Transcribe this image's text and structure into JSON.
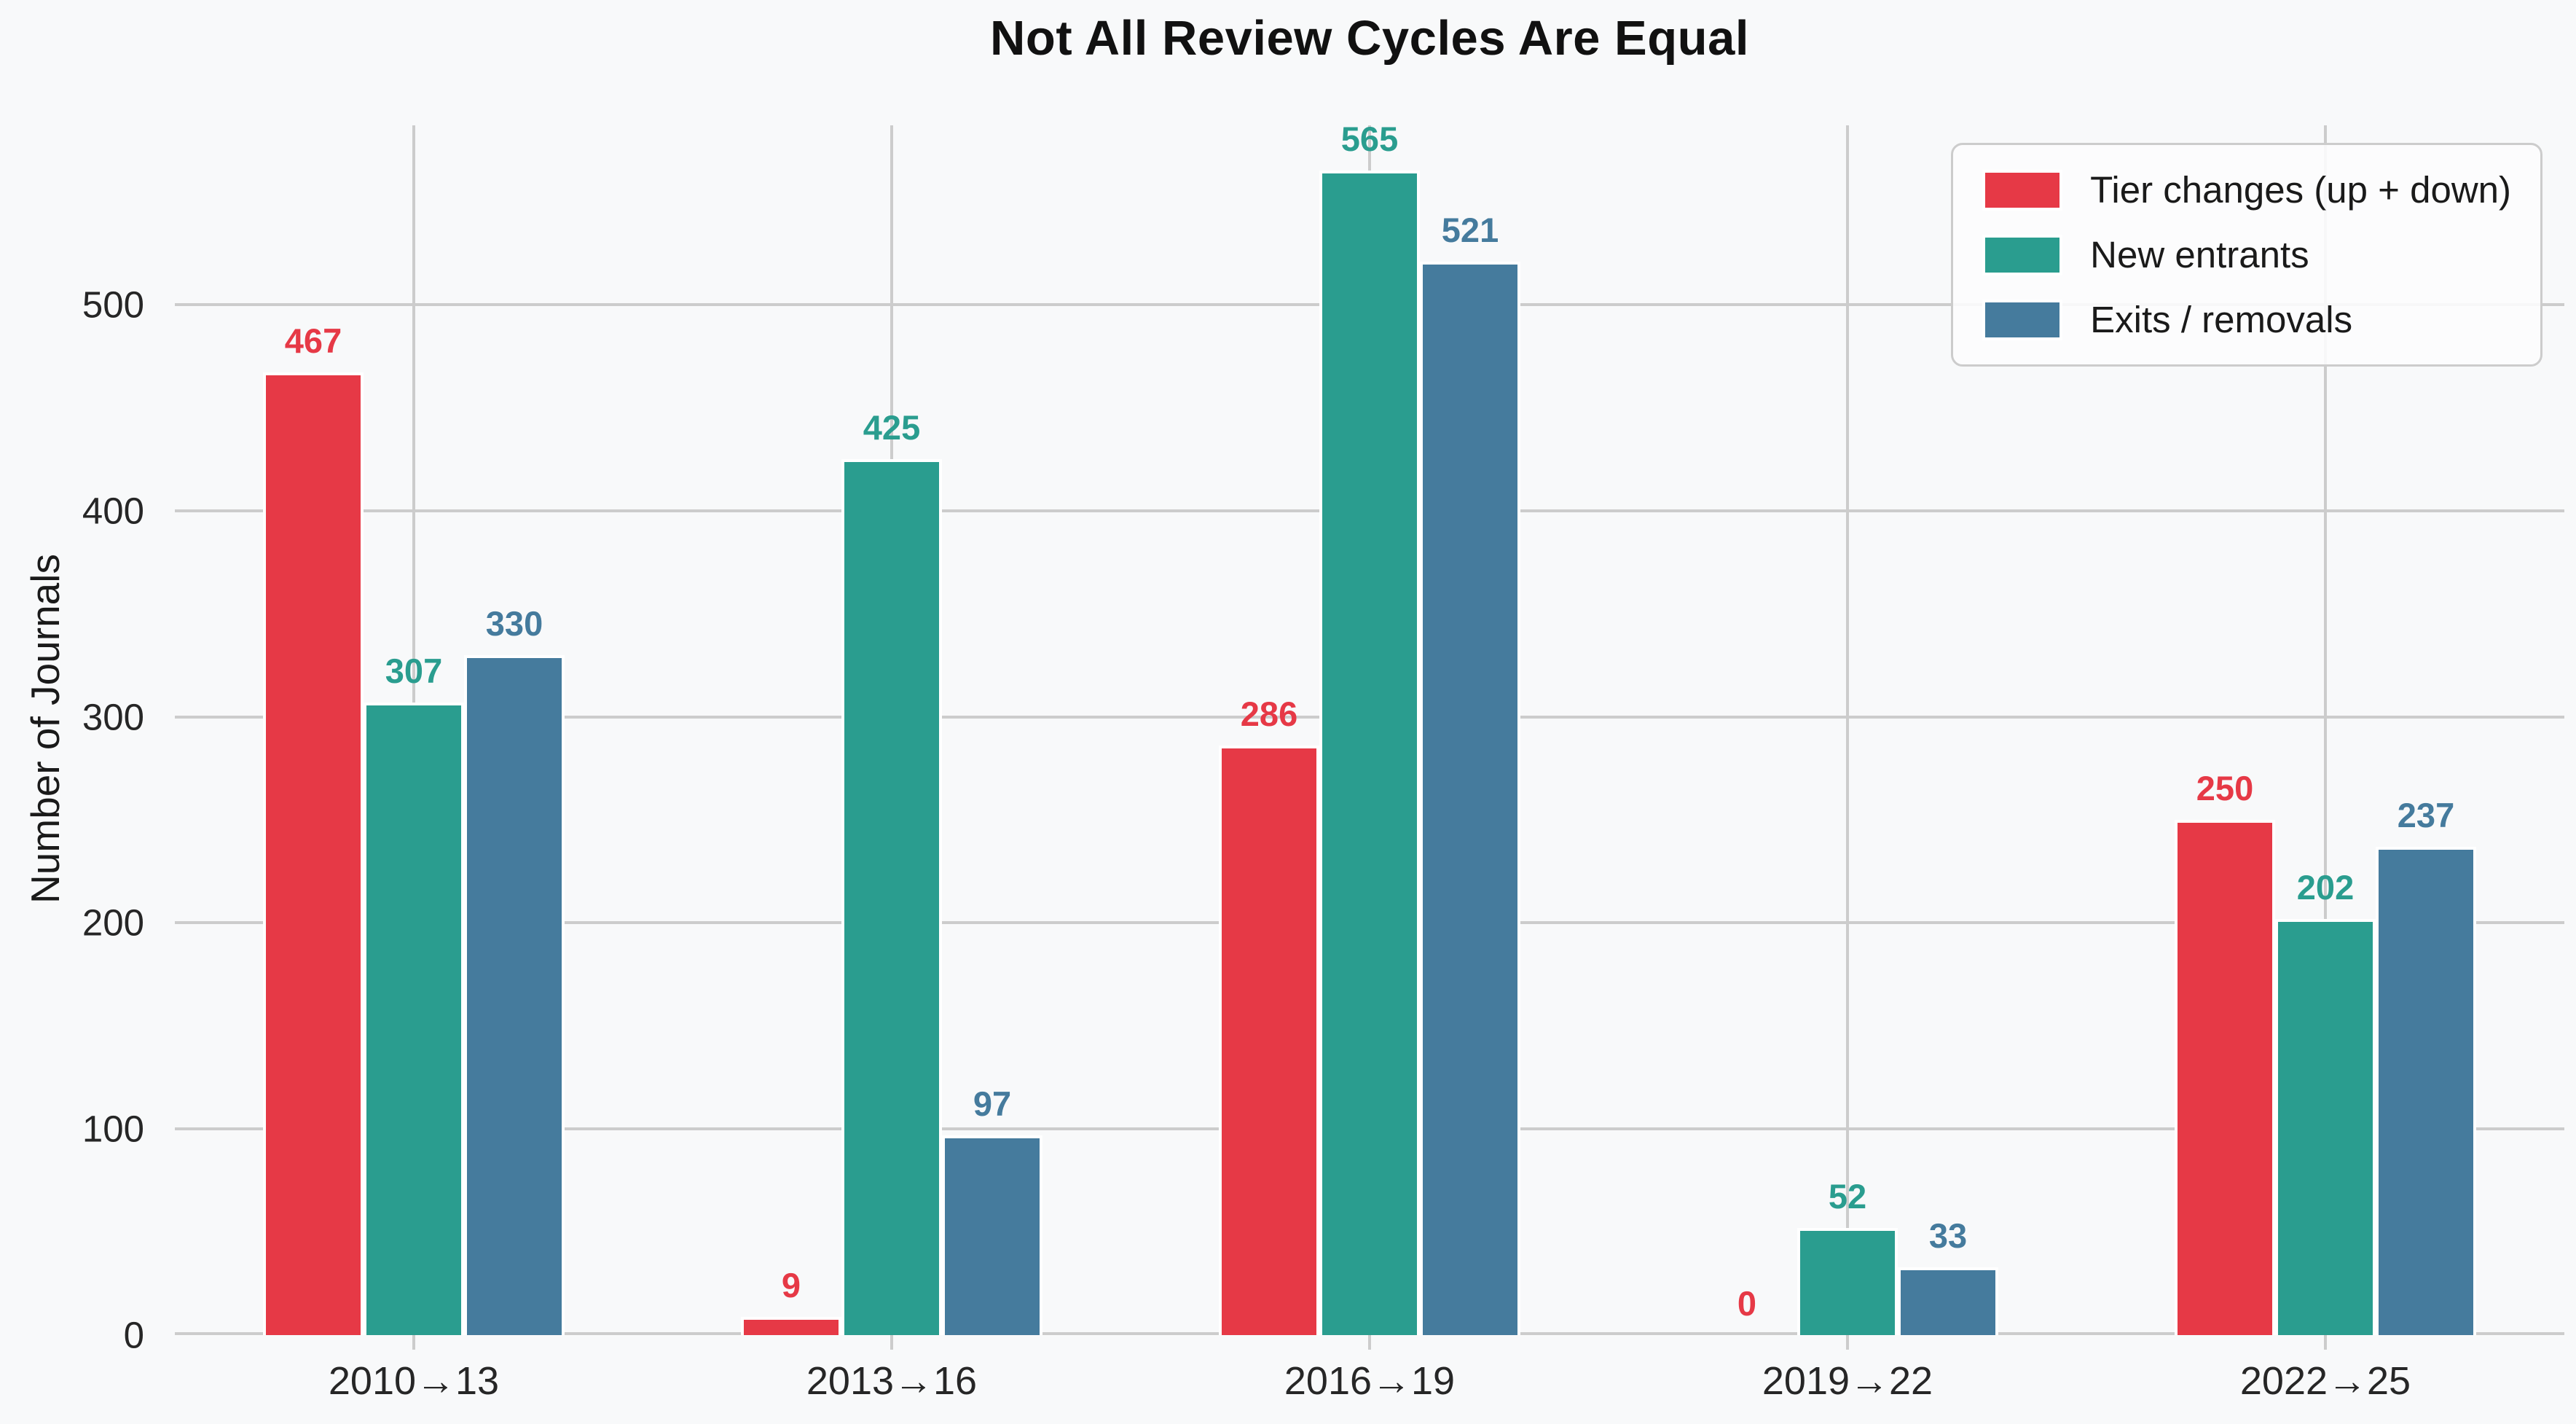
{
  "chart_data": {
    "type": "bar",
    "title": "Not All Review Cycles Are Equal",
    "xlabel": "",
    "ylabel": "Number of Journals",
    "categories": [
      "2010→13",
      "2013→16",
      "2016→19",
      "2019→22",
      "2022→25"
    ],
    "series": [
      {
        "name": "Tier changes (up + down)",
        "color": "#e63946",
        "values": [
          467,
          9,
          286,
          0,
          250
        ]
      },
      {
        "name": "New entrants",
        "color": "#2a9d8f",
        "values": [
          307,
          425,
          565,
          52,
          202
        ]
      },
      {
        "name": "Exits / removals",
        "color": "#457b9d",
        "values": [
          330,
          97,
          521,
          33,
          237
        ]
      }
    ],
    "yticks": [
      0,
      100,
      200,
      300,
      400,
      500
    ],
    "ylim": [
      0,
      587
    ],
    "grid": true,
    "legend_position": "upper right",
    "bar_value_labels": true
  },
  "colors": {
    "background": "#f8f9fa",
    "grid": "#cccccc",
    "text": "#262626",
    "title_text": "#111111",
    "legend_background": "#fcfcfd",
    "legend_border": "#cccccc"
  }
}
